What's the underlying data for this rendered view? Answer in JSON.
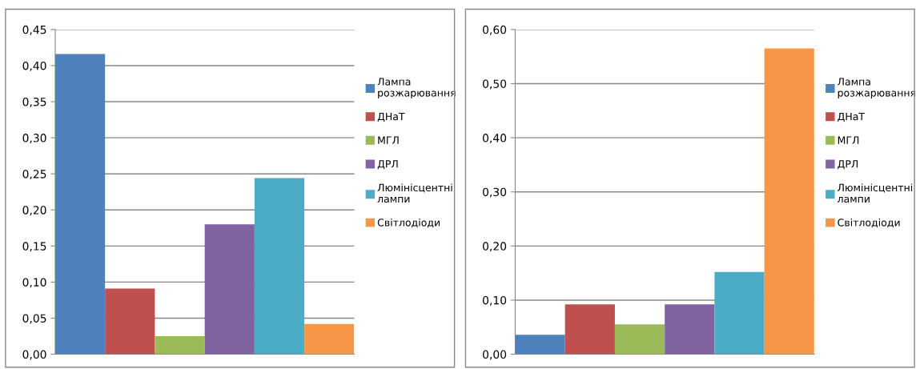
{
  "chart_data": [
    {
      "type": "bar",
      "categories": [
        null
      ],
      "ylim": [
        0,
        0.45
      ],
      "yticks": [
        {
          "value": 0,
          "label": "0,00"
        },
        {
          "value": 0.05,
          "label": "0,05"
        },
        {
          "value": 0.1,
          "label": "0,10"
        },
        {
          "value": 0.15,
          "label": "0,15"
        },
        {
          "value": 0.2,
          "label": "0,20"
        },
        {
          "value": 0.25,
          "label": "0,25"
        },
        {
          "value": 0.3,
          "label": "0,30"
        },
        {
          "value": 0.35,
          "label": "0,35"
        },
        {
          "value": 0.4,
          "label": "0,40"
        },
        {
          "value": 0.45,
          "label": "0,45"
        }
      ],
      "grid": "y",
      "legend": "right",
      "series": [
        {
          "name": "Лампа розжарювання",
          "color": "#4f81bd",
          "values": [
            0.416
          ]
        },
        {
          "name": "ДНаТ",
          "color": "#c0504d",
          "values": [
            0.091
          ]
        },
        {
          "name": "МГЛ",
          "color": "#9bbb59",
          "values": [
            0.025
          ]
        },
        {
          "name": "ДРЛ",
          "color": "#8064a2",
          "values": [
            0.18
          ]
        },
        {
          "name": "Люмінісцентні лампи",
          "color": "#4bacc6",
          "values": [
            0.244
          ]
        },
        {
          "name": "Світлодіоди",
          "color": "#f79646",
          "values": [
            0.042
          ]
        }
      ]
    },
    {
      "type": "bar",
      "categories": [
        null
      ],
      "ylim": [
        0,
        0.6
      ],
      "yticks": [
        {
          "value": 0,
          "label": "0,00"
        },
        {
          "value": 0.1,
          "label": "0,10"
        },
        {
          "value": 0.2,
          "label": "0,20"
        },
        {
          "value": 0.3,
          "label": "0,30"
        },
        {
          "value": 0.4,
          "label": "0,40"
        },
        {
          "value": 0.5,
          "label": "0,50"
        },
        {
          "value": 0.6,
          "label": "0,60"
        }
      ],
      "grid": "y",
      "legend": "right",
      "series": [
        {
          "name": "Лампа розжарювання",
          "color": "#4f81bd",
          "values": [
            0.036
          ]
        },
        {
          "name": "ДНаТ",
          "color": "#c0504d",
          "values": [
            0.092
          ]
        },
        {
          "name": "МГЛ",
          "color": "#9bbb59",
          "values": [
            0.055
          ]
        },
        {
          "name": "ДРЛ",
          "color": "#8064a2",
          "values": [
            0.092
          ]
        },
        {
          "name": "Люмінісцентні лампи",
          "color": "#4bacc6",
          "values": [
            0.152
          ]
        },
        {
          "name": "Світлодіоди",
          "color": "#f79646",
          "values": [
            0.565
          ]
        }
      ]
    }
  ]
}
